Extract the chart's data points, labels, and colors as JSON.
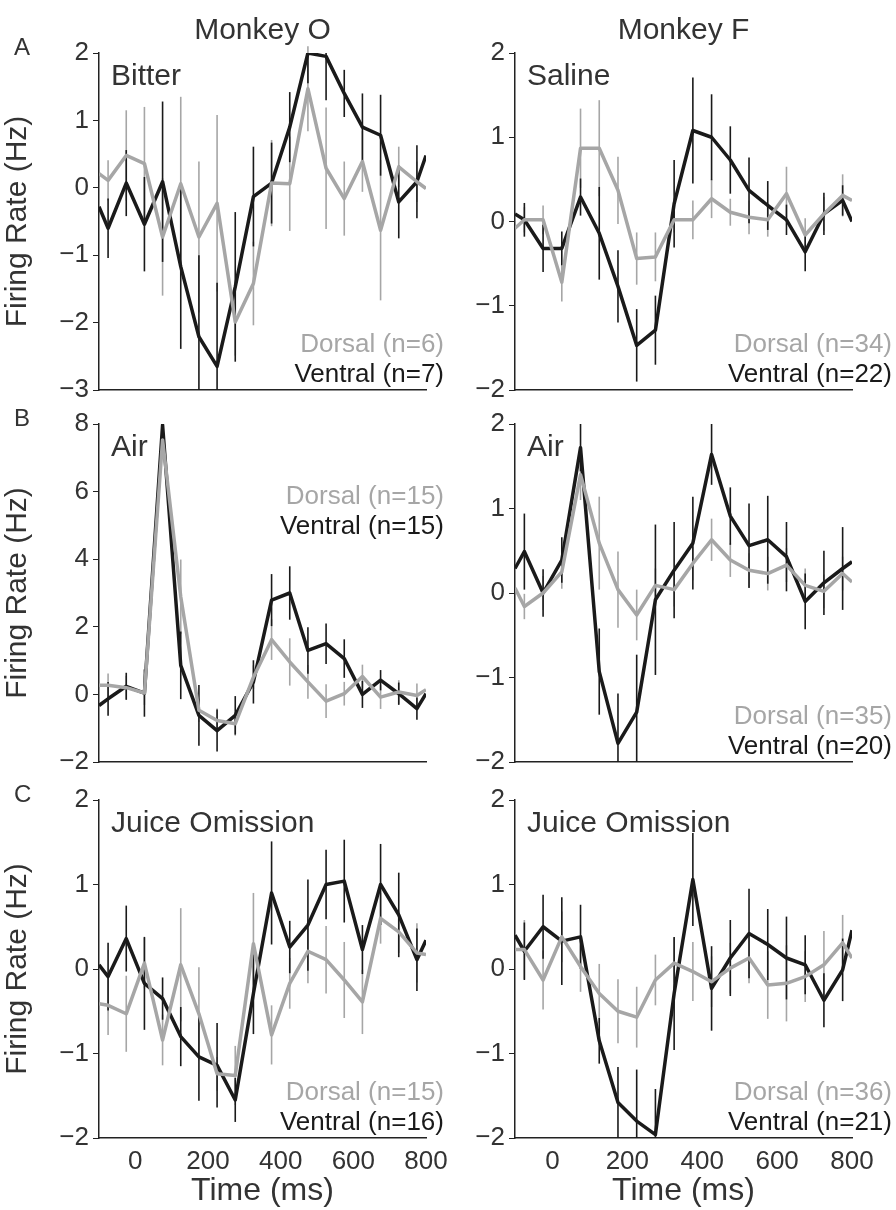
{
  "chart_data": [
    {
      "type": "line",
      "title": "Monkey O",
      "subtitle": "Bitter",
      "ylabel": "Firing Rate (Hz)",
      "annotations": [
        "A"
      ],
      "legend": "bottom right",
      "tick_labels": "y",
      "x": [
        -100,
        -75,
        -25,
        25,
        75,
        125,
        175,
        225,
        275,
        325,
        375,
        425,
        475,
        525,
        575,
        625,
        675,
        725,
        775,
        800
      ],
      "xlim": [
        -100,
        800
      ],
      "xticks": [
        0,
        200,
        400,
        600,
        800
      ],
      "ylim": [
        -3,
        2
      ],
      "yticks": [
        -3,
        -2,
        -1,
        0,
        1,
        2
      ],
      "series": [
        {
          "name": "Dorsal (n=6)",
          "color": "#a6a6a6",
          "values": [
            0.21,
            0.11,
            0.48,
            0.36,
            -0.73,
            0.06,
            -0.73,
            -0.23,
            -1.99,
            -1.42,
            0.07,
            0.06,
            1.47,
            0.29,
            -0.16,
            0.39,
            -0.63,
            0.31,
            0.09,
            -0.01
          ],
          "errors": [
            null,
            0.3,
            0.67,
            0.84,
            0.87,
            1.29,
            1.12,
            1.31,
            0.5,
            0.62,
            0.64,
            0.7,
            0.63,
            0.9,
            0.55,
            0.45,
            1.04,
            0.3,
            0.3,
            null
          ]
        },
        {
          "name": "Ventral (n=7)",
          "color": "#1a1a1a",
          "values": [
            -0.28,
            -0.6,
            0.07,
            -0.54,
            0.09,
            -1.17,
            -2.21,
            -2.65,
            -1.47,
            -0.13,
            0.07,
            0.9,
            2.0,
            1.95,
            1.4,
            0.9,
            0.78,
            -0.21,
            0.09,
            0.48
          ],
          "errors": [
            null,
            0.44,
            0.49,
            0.7,
            1.19,
            1.22,
            [
              -3,
              -1.0
            ],
            [
              -3,
              -1.41
            ],
            1.11,
            0.74,
            0.6,
            0.52,
            [
              1.55,
              2.0
            ],
            [
              1.3,
              2.0
            ],
            0.35,
            0.5,
            0.6,
            0.54,
            0.54,
            null
          ]
        }
      ]
    },
    {
      "type": "line",
      "title": "Monkey F",
      "subtitle": "Saline",
      "legend": "bottom right",
      "tick_labels": "y",
      "x": [
        -100,
        -75,
        -25,
        25,
        75,
        125,
        175,
        225,
        275,
        325,
        375,
        425,
        475,
        525,
        575,
        625,
        675,
        725,
        775,
        800
      ],
      "xlim": [
        -100,
        800
      ],
      "xticks": [
        0,
        200,
        400,
        600,
        800
      ],
      "ylim": [
        -2,
        2
      ],
      "yticks": [
        -2,
        -1,
        0,
        1,
        2
      ],
      "series": [
        {
          "name": "Dorsal (n=34)",
          "color": "#a6a6a6",
          "values": [
            -0.08,
            0.02,
            0.02,
            -0.72,
            0.87,
            0.87,
            0.37,
            -0.44,
            -0.42,
            0.02,
            0.02,
            0.27,
            0.11,
            0.05,
            0.02,
            0.33,
            -0.16,
            0.09,
            0.31,
            0.25
          ],
          "errors": [
            null,
            0.15,
            0.17,
            0.23,
            0.47,
            0.57,
            0.4,
            0.31,
            0.29,
            0.15,
            0.23,
            0.23,
            0.16,
            0.2,
            0.2,
            0.32,
            0.2,
            0.2,
            0.25,
            null
          ]
        },
        {
          "name": "Ventral (n=22)",
          "color": "#1a1a1a",
          "values": [
            0.09,
            0.02,
            -0.32,
            -0.32,
            0.29,
            -0.14,
            -0.77,
            -1.47,
            -1.29,
            0.21,
            1.08,
            1.0,
            0.73,
            0.37,
            0.19,
            0.02,
            -0.36,
            0.09,
            0.25,
            0.0
          ],
          "errors": [
            null,
            0.2,
            0.28,
            0.2,
            0.22,
            0.55,
            0.43,
            0.43,
            0.41,
            0.52,
            0.63,
            0.51,
            0.4,
            0.39,
            0.29,
            0.18,
            0.23,
            0.25,
            0.18,
            null
          ]
        }
      ]
    },
    {
      "type": "line",
      "subtitle": "Air",
      "ylabel": "Firing Rate (Hz)",
      "annotations": [
        "B"
      ],
      "legend": "top right",
      "tick_labels": "y",
      "x": [
        -100,
        -75,
        -25,
        25,
        75,
        125,
        175,
        225,
        275,
        325,
        375,
        425,
        475,
        525,
        575,
        625,
        675,
        725,
        775,
        800
      ],
      "xlim": [
        -100,
        800
      ],
      "xticks": [
        0,
        200,
        400,
        600,
        800
      ],
      "ylim": [
        -2,
        8
      ],
      "yticks": [
        -2,
        0,
        2,
        4,
        6,
        8
      ],
      "series": [
        {
          "name": "Dorsal (n=15)",
          "color": "#a6a6a6",
          "values": [
            0.27,
            0.27,
            0.2,
            0.04,
            7.53,
            2.89,
            -0.47,
            -0.77,
            -0.87,
            0.51,
            1.62,
            0.96,
            0.37,
            -0.2,
            0.02,
            0.53,
            -0.08,
            0.07,
            -0.03,
            0.14
          ],
          "errors": [
            null,
            0.35,
            0.35,
            0.35,
            0.45,
            1.1,
            0.35,
            0.35,
            0.35,
            0.35,
            0.6,
            0.7,
            0.5,
            0.5,
            0.35,
            0.35,
            0.35,
            0.35,
            0.35,
            null
          ]
        },
        {
          "name": "Ventral (n=15)",
          "color": "#1a1a1a",
          "values": [
            -0.33,
            -0.13,
            0.24,
            0.04,
            7.97,
            0.86,
            -0.62,
            -1.07,
            -0.62,
            0.37,
            2.79,
            3.0,
            1.3,
            1.5,
            1.06,
            0.0,
            0.42,
            0.02,
            -0.42,
            0.02
          ],
          "errors": [
            null,
            0.5,
            0.4,
            0.7,
            [
              7.4,
              8.0
            ],
            1.0,
            0.9,
            0.62,
            0.57,
            0.64,
            0.77,
            0.79,
            0.69,
            0.6,
            0.57,
            0.4,
            0.3,
            0.33,
            0.33,
            null
          ]
        }
      ]
    },
    {
      "type": "line",
      "subtitle": "Air",
      "legend": "bottom right",
      "tick_labels": "y",
      "x": [
        -100,
        -75,
        -25,
        25,
        75,
        125,
        175,
        225,
        275,
        325,
        375,
        425,
        475,
        525,
        575,
        625,
        675,
        725,
        775,
        800
      ],
      "xlim": [
        -100,
        800
      ],
      "xticks": [
        0,
        200,
        400,
        600,
        800
      ],
      "ylim": [
        -2,
        2
      ],
      "yticks": [
        -2,
        -1,
        0,
        1,
        2
      ],
      "series": [
        {
          "name": "Dorsal (n=35)",
          "color": "#a6a6a6",
          "values": [
            0.06,
            -0.16,
            0.0,
            0.25,
            1.4,
            0.59,
            0.04,
            -0.26,
            0.09,
            0.04,
            0.35,
            0.63,
            0.39,
            0.27,
            0.23,
            0.33,
            0.09,
            0.02,
            0.23,
            0.13
          ],
          "errors": [
            null,
            0.15,
            0.2,
            0.2,
            0.3,
            0.55,
            0.45,
            0.3,
            0.2,
            0.2,
            0.2,
            0.25,
            0.2,
            0.2,
            0.2,
            0.2,
            0.2,
            0.2,
            0.2,
            null
          ]
        },
        {
          "name": "Ventral (n=20)",
          "color": "#1a1a1a",
          "values": [
            0.29,
            0.49,
            0.0,
            0.39,
            1.72,
            -0.93,
            -1.78,
            -1.41,
            -0.08,
            0.27,
            0.59,
            1.64,
            0.91,
            0.56,
            0.63,
            0.43,
            -0.1,
            0.12,
            0.29,
            0.37
          ],
          "errors": [
            null,
            0.45,
            0.28,
            0.27,
            0.28,
            0.51,
            [
              -2,
              -1.19
            ],
            [
              -2,
              -0.73
            ],
            0.89,
            0.57,
            0.55,
            0.36,
            0.34,
            0.5,
            0.52,
            0.41,
            0.33,
            0.38,
            0.49,
            null
          ]
        }
      ]
    },
    {
      "type": "line",
      "subtitle": "Juice Omission",
      "ylabel": "Firing Rate (Hz)",
      "xlabel": "Time (ms)",
      "annotations": [
        "C"
      ],
      "legend": "bottom right",
      "x": [
        -100,
        -75,
        -25,
        25,
        75,
        125,
        175,
        225,
        275,
        325,
        375,
        425,
        475,
        525,
        575,
        625,
        675,
        725,
        775,
        800
      ],
      "xlim": [
        -100,
        800
      ],
      "xticks": [
        0,
        200,
        400,
        600,
        800
      ],
      "ylim": [
        -2,
        2
      ],
      "yticks": [
        -2,
        -1,
        0,
        1,
        2
      ],
      "series": [
        {
          "name": "Dorsal (n=15)",
          "color": "#a6a6a6",
          "values": [
            -0.41,
            -0.43,
            -0.53,
            0.07,
            -0.84,
            0.05,
            -0.53,
            -1.24,
            -1.26,
            0.3,
            -0.78,
            -0.17,
            0.21,
            0.11,
            -0.13,
            -0.39,
            0.6,
            0.44,
            0.19,
            0.17
          ],
          "errors": [
            null,
            0.35,
            0.45,
            0.3,
            0.3,
            0.67,
            0.55,
            0.2,
            0.35,
            0.6,
            0.35,
            0.3,
            0.38,
            0.4,
            0.45,
            0.38,
            0.3,
            0.25,
            0.35,
            null
          ]
        },
        {
          "name": "Ventral (n=16)",
          "color": "#1a1a1a",
          "values": [
            0.05,
            -0.09,
            0.36,
            -0.17,
            -0.35,
            -0.8,
            -1.04,
            -1.14,
            -1.55,
            -0.29,
            0.9,
            0.26,
            0.52,
            1.0,
            1.04,
            0.23,
            1.0,
            0.64,
            0.11,
            0.34
          ],
          "errors": [
            null,
            0.4,
            0.39,
            0.55,
            0.25,
            0.35,
            0.52,
            0.5,
            0.26,
            0.48,
            0.61,
            0.31,
            0.54,
            0.41,
            0.49,
            0.29,
            0.48,
            0.5,
            0.37,
            null
          ]
        }
      ]
    },
    {
      "type": "line",
      "subtitle": "Juice Omission",
      "xlabel": "Time (ms)",
      "legend": "bottom right",
      "x": [
        -100,
        -75,
        -25,
        25,
        75,
        125,
        175,
        225,
        275,
        325,
        375,
        425,
        475,
        525,
        575,
        625,
        675,
        725,
        775,
        800
      ],
      "xlim": [
        -100,
        800
      ],
      "xticks": [
        0,
        200,
        400,
        600,
        800
      ],
      "ylim": [
        -2,
        2
      ],
      "yticks": [
        -2,
        -1,
        0,
        1,
        2
      ],
      "series": [
        {
          "name": "Dorsal (n=36)",
          "color": "#a6a6a6",
          "values": [
            0.23,
            0.23,
            -0.13,
            0.38,
            0.03,
            -0.29,
            -0.5,
            -0.57,
            -0.13,
            0.07,
            -0.03,
            -0.15,
            0.01,
            0.13,
            -0.19,
            -0.17,
            -0.09,
            0.05,
            0.31,
            0.13
          ],
          "errors": [
            null,
            0.35,
            0.35,
            0.3,
            0.3,
            0.35,
            0.38,
            0.36,
            0.3,
            0.3,
            0.35,
            0.3,
            0.3,
            0.3,
            0.4,
            0.45,
            0.3,
            0.4,
            0.33,
            null
          ]
        },
        {
          "name": "Ventral (n=21)",
          "color": "#1a1a1a",
          "values": [
            0.4,
            0.21,
            0.5,
            0.33,
            0.38,
            -0.85,
            -1.58,
            -1.8,
            -1.96,
            -0.29,
            1.06,
            -0.23,
            0.13,
            0.42,
            0.29,
            0.13,
            0.05,
            -0.37,
            -0.01,
            0.46
          ],
          "errors": [
            null,
            0.34,
            0.38,
            0.52,
            0.38,
            0.27,
            0.42,
            [
              -2,
              -1.19
            ],
            [
              -2,
              -1.42
            ],
            0.67,
            0.55,
            0.5,
            0.45,
            0.53,
            0.42,
            0.49,
            0.35,
            0.32,
            0.37,
            null
          ]
        }
      ]
    }
  ]
}
